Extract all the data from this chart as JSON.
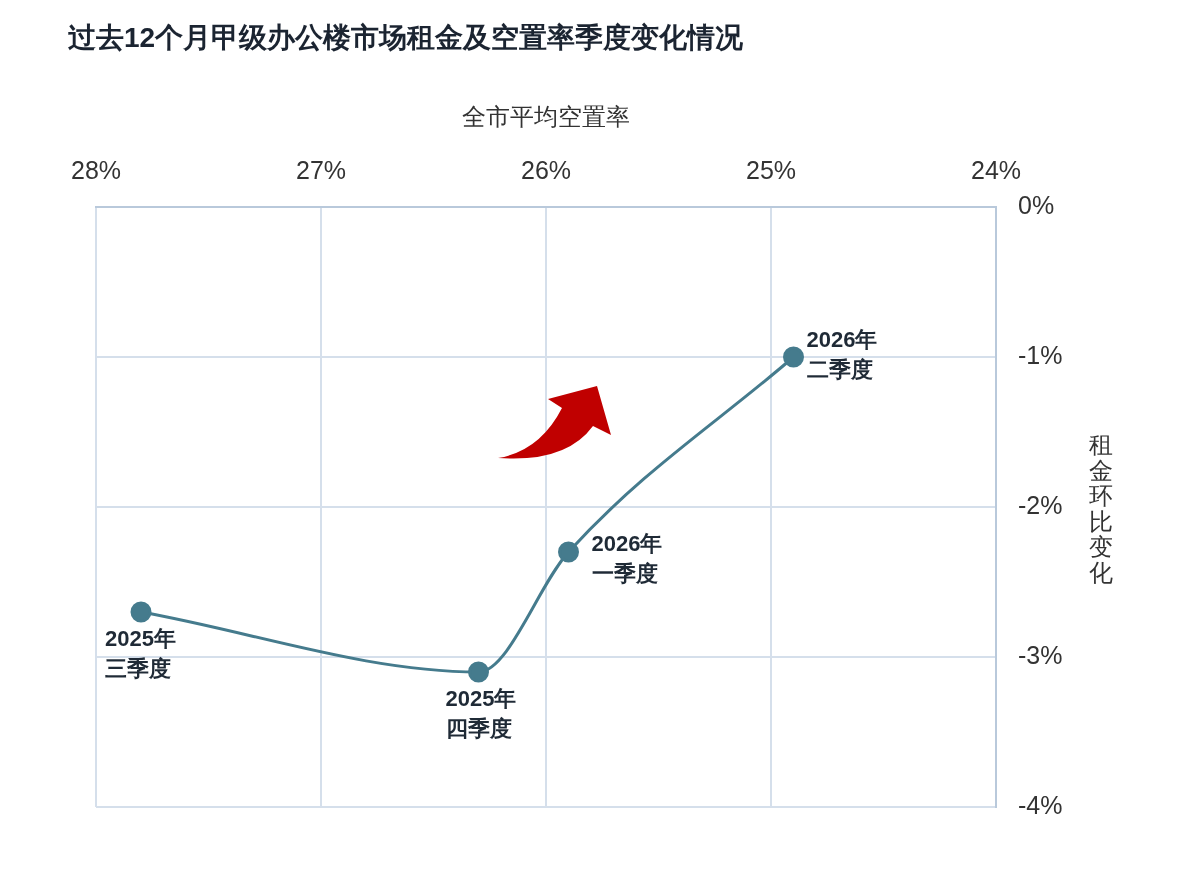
{
  "chart_data": {
    "type": "line",
    "title": "过去12个月甲级办公楼市场租金及空置率季度变化情况",
    "xlabel": "全市平均空置率",
    "ylabel": "租金环比变化",
    "x": [
      27.8,
      26.3,
      25.9,
      24.9
    ],
    "series": [
      {
        "color": "#457b8d",
        "values": [
          -2.7,
          -3.1,
          -2.3,
          -1.0
        ]
      }
    ],
    "xlim": [
      28,
      24
    ],
    "xticks": [
      {
        "value": 28,
        "label": "28%"
      },
      {
        "value": 27,
        "label": "27%"
      },
      {
        "value": 26,
        "label": "26%"
      },
      {
        "value": 25,
        "label": "25%"
      },
      {
        "value": 24,
        "label": "24%"
      }
    ],
    "ylim": [
      -4,
      0
    ],
    "yticks": [
      {
        "value": 0,
        "label": "0%"
      },
      {
        "value": -1,
        "label": "-1%"
      },
      {
        "value": -2,
        "label": "-2%"
      },
      {
        "value": -3,
        "label": "-3%"
      },
      {
        "value": -4,
        "label": "-4%"
      }
    ],
    "grid": true,
    "marker": "circle",
    "annotations": [
      {
        "text": "2025年三季度",
        "x": 27.8,
        "y": -2.7
      },
      {
        "text": "2025年四季度",
        "x": 26.3,
        "y": -3.1
      },
      {
        "text": "2026年一季度",
        "x": 25.9,
        "y": -2.3
      },
      {
        "text": "2026年二季度",
        "x": 24.9,
        "y": -1.0
      }
    ]
  }
}
